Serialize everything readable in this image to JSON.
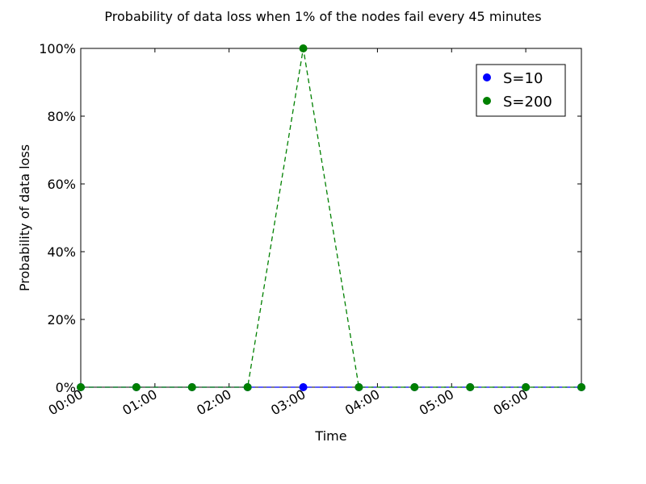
{
  "chart_data": {
    "type": "line",
    "title": "Probability of data loss when 1% of the nodes fail every 45 minutes",
    "xlabel": "Time",
    "ylabel": "Probability of data loss",
    "x": [
      "00:00",
      "00:45",
      "01:30",
      "02:15",
      "03:00",
      "03:45",
      "04:30",
      "05:15",
      "06:00",
      "06:45"
    ],
    "xlim": [
      "00:00",
      "06:45"
    ],
    "ylim": [
      0,
      100
    ],
    "x_ticks": [
      "00:00",
      "01:00",
      "02:00",
      "03:00",
      "04:00",
      "05:00",
      "06:00"
    ],
    "y_ticks": [
      "0%",
      "20%",
      "40%",
      "60%",
      "80%",
      "100%"
    ],
    "grid": false,
    "legend_position": "top-right",
    "series": [
      {
        "name": "S=10",
        "color": "#0000ff",
        "line_style": "dashed",
        "values": [
          0,
          0,
          0,
          0,
          0,
          0,
          0,
          0,
          0,
          0
        ]
      },
      {
        "name": "S=200",
        "color": "#008000",
        "line_style": "dashed",
        "values": [
          0,
          0,
          0,
          0,
          100,
          0,
          0,
          0,
          0,
          0
        ]
      }
    ]
  }
}
